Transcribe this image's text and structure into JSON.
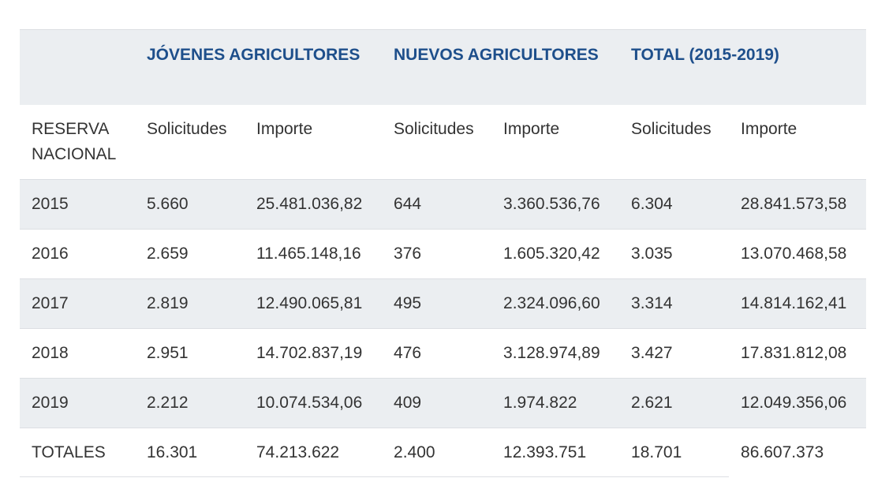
{
  "groups": {
    "jovenes": "JÓVENES AGRICULTORES",
    "nuevos": "NUEVOS AGRICULTORES",
    "total": "TOTAL (2015-2019)"
  },
  "subheaders": {
    "first": "RESERVA NACIONAL",
    "solicitudes": "Solicitudes",
    "importe": "Importe"
  },
  "rows": [
    [
      "2015",
      "5.660",
      "25.481.036,82",
      "644",
      "3.360.536,76",
      "6.304",
      "28.841.573,58"
    ],
    [
      "2016",
      "2.659",
      "11.465.148,16",
      "376",
      "1.605.320,42",
      "3.035",
      "13.070.468,58"
    ],
    [
      "2017",
      "2.819",
      "12.490.065,81",
      "495",
      "2.324.096,60",
      "3.314",
      "14.814.162,41"
    ],
    [
      "2018",
      "2.951",
      "14.702.837,19",
      "476",
      "3.128.974,89",
      "3.427",
      "17.831.812,08"
    ],
    [
      "2019",
      "2.212",
      "10.074.534,06",
      "409",
      "1.974.822",
      "2.621",
      "12.049.356,06"
    ],
    [
      "TOTALES",
      "16.301",
      "74.213.622",
      "2.400",
      "12.393.751",
      "18.701",
      "86.607.373"
    ]
  ]
}
